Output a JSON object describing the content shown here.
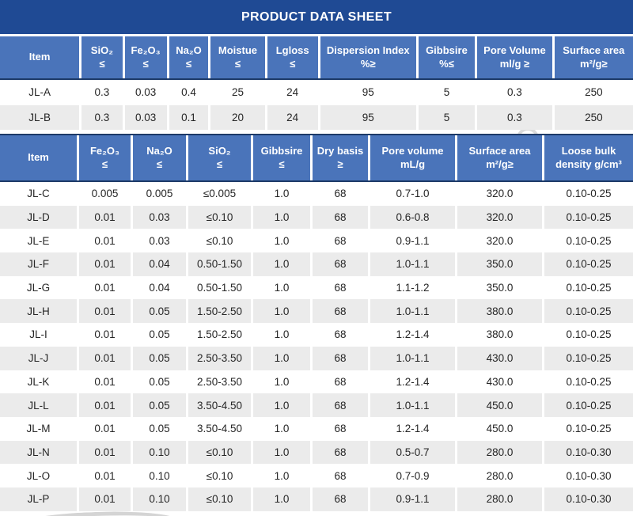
{
  "title": "PRODUCT DATA SHEET",
  "colors": {
    "banner_bg": "#1F4A94",
    "header_bg": "#4A74BA",
    "header_text": "#FFFFFF",
    "header_border": "#1D3A68",
    "alt_row_bg": "#EBEBEB",
    "body_text": "#262626"
  },
  "table1": {
    "columns": [
      {
        "label": "Item",
        "sub": ""
      },
      {
        "label": "SiO₂",
        "sub": "≤"
      },
      {
        "label": "Fe₂O₃",
        "sub": "≤"
      },
      {
        "label": "Na₂O",
        "sub": "≤"
      },
      {
        "label": "Moistue",
        "sub": "≤"
      },
      {
        "label": "Lgloss",
        "sub": "≤"
      },
      {
        "label": "Dispersion Index",
        "sub": "%≥"
      },
      {
        "label": "Gibbsire",
        "sub": "%≤"
      },
      {
        "label": "Pore Volume",
        "sub": "ml/g ≥"
      },
      {
        "label": "Surface area",
        "sub": "m²/g≥"
      }
    ],
    "col_widths_pct": [
      12.9,
      6.8,
      7.0,
      6.6,
      8.9,
      8.4,
      15.5,
      9.3,
      12.2,
      12.4
    ],
    "rows": [
      [
        "JL-A",
        "0.3",
        "0.03",
        "0.4",
        "25",
        "24",
        "95",
        "5",
        "0.3",
        "250"
      ],
      [
        "JL-B",
        "0.3",
        "0.03",
        "0.1",
        "20",
        "24",
        "95",
        "5",
        "0.3",
        "250"
      ]
    ]
  },
  "table2": {
    "columns": [
      {
        "label": "Item",
        "sub": ""
      },
      {
        "label": "Fe₂O₃",
        "sub": "≤"
      },
      {
        "label": "Na₂O",
        "sub": "≤"
      },
      {
        "label": "SiO₂",
        "sub": "≤"
      },
      {
        "label": "Gibbsire",
        "sub": "≤"
      },
      {
        "label": "Dry basis",
        "sub": "≥"
      },
      {
        "label": "Pore volume",
        "sub": "mL/g"
      },
      {
        "label": "Surface area",
        "sub": "m²/g≥"
      },
      {
        "label": "Loose bulk",
        "sub": "density g/cm³"
      }
    ],
    "col_widths_pct": [
      12.5,
      8.5,
      8.75,
      10.25,
      9.375,
      9.125,
      13.75,
      13.75,
      14.0
    ],
    "rows": [
      [
        "JL-C",
        "0.005",
        "0.005",
        "≤0.005",
        "1.0",
        "68",
        "0.7-1.0",
        "320.0",
        "0.10-0.25"
      ],
      [
        "JL-D",
        "0.01",
        "0.03",
        "≤0.10",
        "1.0",
        "68",
        "0.6-0.8",
        "320.0",
        "0.10-0.25"
      ],
      [
        "JL-E",
        "0.01",
        "0.03",
        "≤0.10",
        "1.0",
        "68",
        "0.9-1.1",
        "320.0",
        "0.10-0.25"
      ],
      [
        "JL-F",
        "0.01",
        "0.04",
        "0.50-1.50",
        "1.0",
        "68",
        "1.0-1.1",
        "350.0",
        "0.10-0.25"
      ],
      [
        "JL-G",
        "0.01",
        "0.04",
        "0.50-1.50",
        "1.0",
        "68",
        "1.1-1.2",
        "350.0",
        "0.10-0.25"
      ],
      [
        "JL-H",
        "0.01",
        "0.05",
        "1.50-2.50",
        "1.0",
        "68",
        "1.0-1.1",
        "380.0",
        "0.10-0.25"
      ],
      [
        "JL-I",
        "0.01",
        "0.05",
        "1.50-2.50",
        "1.0",
        "68",
        "1.2-1.4",
        "380.0",
        "0.10-0.25"
      ],
      [
        "JL-J",
        "0.01",
        "0.05",
        "2.50-3.50",
        "1.0",
        "68",
        "1.0-1.1",
        "430.0",
        "0.10-0.25"
      ],
      [
        "JL-K",
        "0.01",
        "0.05",
        "2.50-3.50",
        "1.0",
        "68",
        "1.2-1.4",
        "430.0",
        "0.10-0.25"
      ],
      [
        "JL-L",
        "0.01",
        "0.05",
        "3.50-4.50",
        "1.0",
        "68",
        "1.0-1.1",
        "450.0",
        "0.10-0.25"
      ],
      [
        "JL-M",
        "0.01",
        "0.05",
        "3.50-4.50",
        "1.0",
        "68",
        "1.2-1.4",
        "450.0",
        "0.10-0.25"
      ],
      [
        "JL-N",
        "0.01",
        "0.10",
        "≤0.10",
        "1.0",
        "68",
        "0.5-0.7",
        "280.0",
        "0.10-0.30"
      ],
      [
        "JL-O",
        "0.01",
        "0.10",
        "≤0.10",
        "1.0",
        "68",
        "0.7-0.9",
        "280.0",
        "0.10-0.30"
      ],
      [
        "JL-P",
        "0.01",
        "0.10",
        "≤0.10",
        "1.0",
        "68",
        "0.9-1.1",
        "280.0",
        "0.10-0.30"
      ]
    ]
  }
}
